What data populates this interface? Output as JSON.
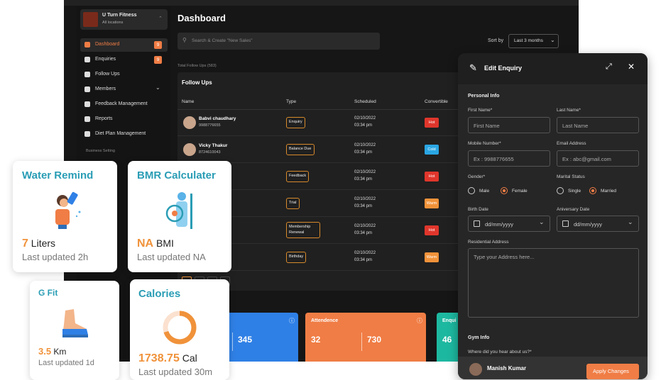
{
  "sidebar": {
    "brand": "U Turn Fitness",
    "location": "All locations",
    "menu": [
      {
        "label": "Dashboard",
        "badge": 9,
        "active": true
      },
      {
        "label": "Enquiries",
        "badge": 9
      },
      {
        "label": "Follow Ups"
      },
      {
        "label": "Members",
        "submenu": true
      },
      {
        "label": "Feedback Management"
      },
      {
        "label": "Reports"
      },
      {
        "label": "Diet Plan Management"
      }
    ],
    "section": "Business Setting"
  },
  "dashboard": {
    "title": "Dashboard",
    "search_placeholder": "Search & Create \"New Sales\"",
    "sort_label": "Sort by",
    "sort_value": "Last 3 months",
    "total": "Total Follow Ups (583)",
    "table": {
      "title": "Follow Ups",
      "columns": [
        "Name",
        "Type",
        "Scheduled",
        "Convertible"
      ],
      "rows": [
        {
          "name": "Babvi chaudhary",
          "phone": "9988776655",
          "type": "Enquiry",
          "date": "02/10/2022",
          "time": "03:34 pm",
          "status": "Hot",
          "status_color": "#e0362c"
        },
        {
          "name": "Vicky Thakur",
          "phone": "8724610043",
          "type": "Balance Due",
          "date": "02/10/2022",
          "time": "03:34 pm",
          "status": "Cold",
          "status_color": "#2aa6e3"
        },
        {
          "type": "Feedback",
          "date": "02/10/2022",
          "time": "03:34 pm",
          "status": "Hot",
          "status_color": "#e0362c"
        },
        {
          "type": "Trial",
          "date": "02/10/2022",
          "time": "03:34 pm",
          "status": "Warm",
          "status_color": "#f0923a"
        },
        {
          "type": "Membership Renewal",
          "date": "02/10/2022",
          "time": "03:34 pm",
          "status": "Hot",
          "status_color": "#e0362c"
        },
        {
          "type": "Birthday",
          "date": "02/10/2022",
          "time": "03:34 pm",
          "status": "Warm",
          "status_color": "#f0923a"
        }
      ]
    },
    "stats": [
      {
        "values": [
          "345"
        ],
        "color": "#2f80e6"
      },
      {
        "title": "Attendence",
        "values": [
          "32",
          "730"
        ],
        "color": "#f07d45"
      },
      {
        "title": "Enqui",
        "values": [
          "46"
        ],
        "color": "#1db8a0"
      }
    ]
  },
  "panel": {
    "title": "Edit Enquiry",
    "personal": "Personal Info",
    "fields": [
      {
        "label": "First Name*",
        "placeholder": "First Name"
      },
      {
        "label": "Last Name*",
        "placeholder": "Last Name"
      },
      {
        "label": "Mobile Number*",
        "placeholder": "Ex : 9988776655"
      },
      {
        "label": "Email Address",
        "placeholder": "Ex : abc@gmail.com"
      }
    ],
    "radios": [
      {
        "label": "Gender*",
        "options": [
          {
            "label": "Male"
          },
          {
            "label": "Female",
            "selected": true
          }
        ]
      },
      {
        "label": "Marital Status",
        "options": [
          {
            "label": "Single"
          },
          {
            "label": "Married",
            "selected": true
          }
        ]
      }
    ],
    "dates": [
      {
        "label": "Birth Date",
        "placeholder": "dd/mm/yyyy"
      },
      {
        "label": "Aniversary Date",
        "placeholder": "dd/mm/yyyy"
      }
    ],
    "address_label": "Residential Address",
    "address_placeholder": "Type your Address here...",
    "gym": "Gym Info",
    "question": "Where did you hear about us?*",
    "user": "Manish Kumar",
    "button": "Apply Changes"
  },
  "cards": [
    {
      "title": "Water Remind",
      "value": "7",
      "unit": "Liters",
      "updated": "Last updated 2h"
    },
    {
      "title": "BMR Calculater",
      "value": "NA",
      "unit": "BMI",
      "updated": "Last updated NA"
    },
    {
      "title": "G Fit",
      "value": "3.5",
      "unit": "Km",
      "updated": "Last updated 1d"
    },
    {
      "title": "Calories",
      "value": "1738.75",
      "unit": "Cal",
      "updated": "Last updated 30m"
    }
  ]
}
